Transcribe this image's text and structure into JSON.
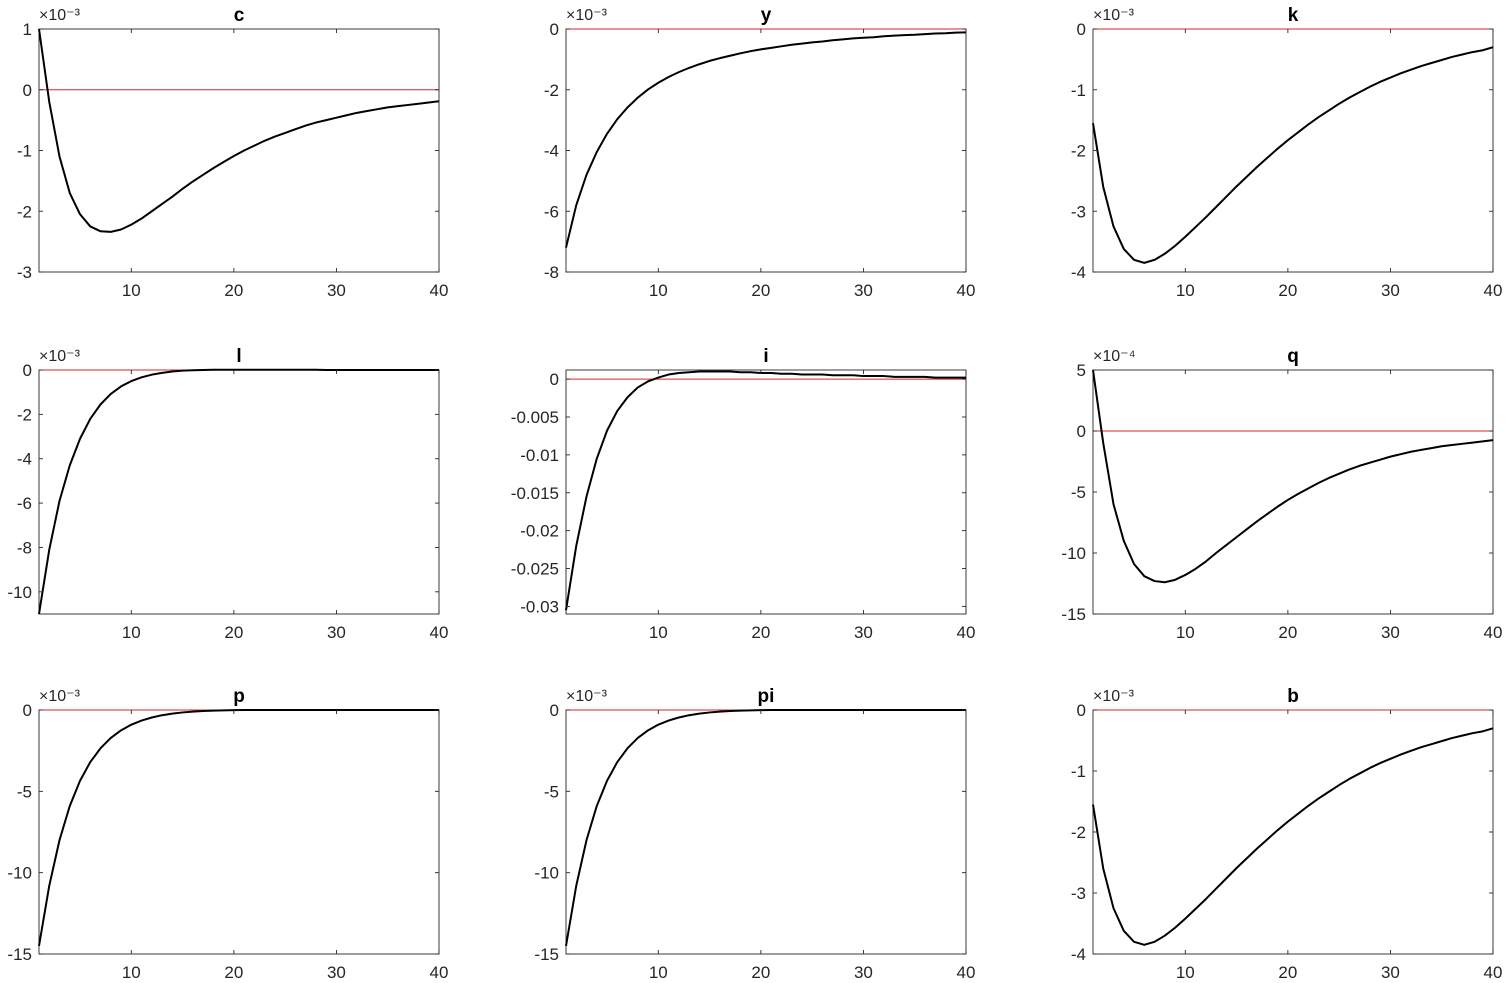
{
  "figure": {
    "colors": {
      "response": "#000000",
      "zero_line": "#d62728",
      "axes": "#262626",
      "background": "#ffffff"
    }
  },
  "chart_data": [
    {
      "type": "line",
      "title": "c",
      "exponent_label": "×10⁻³",
      "xlim": [
        1,
        40
      ],
      "ylim": [
        -3,
        1
      ],
      "xticks": [
        10,
        20,
        30,
        40
      ],
      "yticks": [
        -3,
        -2,
        -1,
        0,
        1
      ],
      "grid": false,
      "reference_line": 0,
      "x": [
        1,
        2,
        3,
        4,
        5,
        6,
        7,
        8,
        9,
        10,
        11,
        12,
        13,
        14,
        15,
        16,
        17,
        18,
        19,
        20,
        21,
        22,
        23,
        24,
        25,
        26,
        27,
        28,
        29,
        30,
        31,
        32,
        33,
        34,
        35,
        36,
        37,
        38,
        39,
        40
      ],
      "values": [
        1.0,
        -0.2,
        -1.1,
        -1.7,
        -2.05,
        -2.25,
        -2.33,
        -2.34,
        -2.3,
        -2.22,
        -2.12,
        -2.0,
        -1.88,
        -1.76,
        -1.63,
        -1.51,
        -1.4,
        -1.29,
        -1.19,
        -1.09,
        -1.0,
        -0.92,
        -0.84,
        -0.77,
        -0.71,
        -0.65,
        -0.59,
        -0.54,
        -0.5,
        -0.46,
        -0.42,
        -0.38,
        -0.35,
        -0.32,
        -0.29,
        -0.27,
        -0.25,
        -0.23,
        -0.21,
        -0.19
      ]
    },
    {
      "type": "line",
      "title": "y",
      "exponent_label": "×10⁻³",
      "xlim": [
        1,
        40
      ],
      "ylim": [
        -8,
        0
      ],
      "xticks": [
        10,
        20,
        30,
        40
      ],
      "yticks": [
        -8,
        -6,
        -4,
        -2,
        0
      ],
      "grid": false,
      "reference_line": 0,
      "x": [
        1,
        2,
        3,
        4,
        5,
        6,
        7,
        8,
        9,
        10,
        11,
        12,
        13,
        14,
        15,
        16,
        17,
        18,
        19,
        20,
        21,
        22,
        23,
        24,
        25,
        26,
        27,
        28,
        29,
        30,
        31,
        32,
        33,
        34,
        35,
        36,
        37,
        38,
        39,
        40
      ],
      "values": [
        -7.2,
        -5.8,
        -4.8,
        -4.05,
        -3.45,
        -2.97,
        -2.58,
        -2.26,
        -1.99,
        -1.77,
        -1.58,
        -1.42,
        -1.28,
        -1.16,
        -1.05,
        -0.96,
        -0.88,
        -0.8,
        -0.73,
        -0.67,
        -0.62,
        -0.57,
        -0.52,
        -0.48,
        -0.44,
        -0.41,
        -0.37,
        -0.34,
        -0.31,
        -0.29,
        -0.27,
        -0.24,
        -0.22,
        -0.2,
        -0.19,
        -0.17,
        -0.15,
        -0.14,
        -0.12,
        -0.11
      ]
    },
    {
      "type": "line",
      "title": "k",
      "exponent_label": "×10⁻³",
      "xlim": [
        1,
        40
      ],
      "ylim": [
        -4,
        0
      ],
      "xticks": [
        10,
        20,
        30,
        40
      ],
      "yticks": [
        -4,
        -3,
        -2,
        -1,
        0
      ],
      "grid": false,
      "reference_line": 0,
      "x": [
        1,
        2,
        3,
        4,
        5,
        6,
        7,
        8,
        9,
        10,
        11,
        12,
        13,
        14,
        15,
        16,
        17,
        18,
        19,
        20,
        21,
        22,
        23,
        24,
        25,
        26,
        27,
        28,
        29,
        30,
        31,
        32,
        33,
        34,
        35,
        36,
        37,
        38,
        39,
        40
      ],
      "values": [
        -1.55,
        -2.6,
        -3.25,
        -3.62,
        -3.8,
        -3.85,
        -3.8,
        -3.7,
        -3.57,
        -3.42,
        -3.26,
        -3.1,
        -2.93,
        -2.76,
        -2.59,
        -2.43,
        -2.27,
        -2.12,
        -1.97,
        -1.83,
        -1.7,
        -1.57,
        -1.45,
        -1.34,
        -1.23,
        -1.13,
        -1.04,
        -0.95,
        -0.87,
        -0.8,
        -0.73,
        -0.67,
        -0.61,
        -0.56,
        -0.51,
        -0.46,
        -0.42,
        -0.38,
        -0.35,
        -0.3
      ]
    },
    {
      "type": "line",
      "title": "l",
      "exponent_label": "×10⁻³",
      "xlim": [
        1,
        40
      ],
      "ylim": [
        -11,
        0
      ],
      "xticks": [
        10,
        20,
        30,
        40
      ],
      "yticks": [
        -10,
        -8,
        -6,
        -4,
        -2,
        0
      ],
      "grid": false,
      "reference_line": 0,
      "x": [
        1,
        2,
        3,
        4,
        5,
        6,
        7,
        8,
        9,
        10,
        11,
        12,
        13,
        14,
        15,
        16,
        17,
        18,
        19,
        20,
        21,
        22,
        23,
        24,
        25,
        26,
        27,
        28,
        29,
        30,
        31,
        32,
        33,
        34,
        35,
        36,
        37,
        38,
        39,
        40
      ],
      "values": [
        -11.0,
        -8.1,
        -5.9,
        -4.3,
        -3.1,
        -2.2,
        -1.55,
        -1.08,
        -0.74,
        -0.5,
        -0.33,
        -0.21,
        -0.13,
        -0.07,
        -0.03,
        -0.01,
        0.0,
        0.01,
        0.01,
        0.01,
        0.01,
        0.01,
        0.01,
        0.01,
        0.01,
        0.01,
        0.01,
        0.01,
        0.0,
        0.0,
        0.0,
        0.0,
        0.0,
        0.0,
        0.0,
        0.0,
        0.0,
        0.0,
        0.0,
        0.0
      ]
    },
    {
      "type": "line",
      "title": "i",
      "exponent_label": "",
      "xlim": [
        1,
        40
      ],
      "ylim": [
        -0.031,
        0.0012
      ],
      "xticks": [
        10,
        20,
        30,
        40
      ],
      "yticks": [
        -0.03,
        -0.025,
        -0.02,
        -0.015,
        -0.01,
        -0.005,
        0
      ],
      "ytick_labels": [
        "-0.03",
        "-0.025",
        "-0.02",
        "-0.015",
        "-0.01",
        "-0.005",
        "0"
      ],
      "grid": false,
      "reference_line": 0,
      "x": [
        1,
        2,
        3,
        4,
        5,
        6,
        7,
        8,
        9,
        10,
        11,
        12,
        13,
        14,
        15,
        16,
        17,
        18,
        19,
        20,
        21,
        22,
        23,
        24,
        25,
        26,
        27,
        28,
        29,
        30,
        31,
        32,
        33,
        34,
        35,
        36,
        37,
        38,
        39,
        40
      ],
      "values": [
        -0.0305,
        -0.022,
        -0.0155,
        -0.0105,
        -0.0068,
        -0.0042,
        -0.0024,
        -0.0011,
        -0.0003,
        0.0002,
        0.0006,
        0.0008,
        0.0009,
        0.001,
        0.001,
        0.001,
        0.001,
        0.0009,
        0.0009,
        0.0008,
        0.0008,
        0.0007,
        0.0007,
        0.0006,
        0.0006,
        0.0006,
        0.0005,
        0.0005,
        0.0005,
        0.0004,
        0.0004,
        0.0004,
        0.0003,
        0.0003,
        0.0003,
        0.0003,
        0.0002,
        0.0002,
        0.0002,
        0.0002
      ]
    },
    {
      "type": "line",
      "title": "q",
      "exponent_label": "×10⁻⁴",
      "xlim": [
        1,
        40
      ],
      "ylim": [
        -15,
        5
      ],
      "xticks": [
        10,
        20,
        30,
        40
      ],
      "yticks": [
        -15,
        -10,
        -5,
        0,
        5
      ],
      "grid": false,
      "reference_line": 0,
      "x": [
        1,
        2,
        3,
        4,
        5,
        6,
        7,
        8,
        9,
        10,
        11,
        12,
        13,
        14,
        15,
        16,
        17,
        18,
        19,
        20,
        21,
        22,
        23,
        24,
        25,
        26,
        27,
        28,
        29,
        30,
        31,
        32,
        33,
        34,
        35,
        36,
        37,
        38,
        39,
        40
      ],
      "values": [
        5.0,
        -1.0,
        -6.0,
        -9.0,
        -10.9,
        -11.9,
        -12.3,
        -12.4,
        -12.2,
        -11.8,
        -11.3,
        -10.7,
        -10.0,
        -9.35,
        -8.7,
        -8.05,
        -7.4,
        -6.8,
        -6.2,
        -5.65,
        -5.15,
        -4.7,
        -4.25,
        -3.85,
        -3.5,
        -3.15,
        -2.85,
        -2.6,
        -2.35,
        -2.1,
        -1.9,
        -1.7,
        -1.55,
        -1.4,
        -1.25,
        -1.15,
        -1.05,
        -0.95,
        -0.85,
        -0.75
      ]
    },
    {
      "type": "line",
      "title": "p",
      "exponent_label": "×10⁻³",
      "xlim": [
        1,
        40
      ],
      "ylim": [
        -15,
        0
      ],
      "xticks": [
        10,
        20,
        30,
        40
      ],
      "yticks": [
        -15,
        -10,
        -5,
        0
      ],
      "grid": false,
      "reference_line": 0,
      "x": [
        1,
        2,
        3,
        4,
        5,
        6,
        7,
        8,
        9,
        10,
        11,
        12,
        13,
        14,
        15,
        16,
        17,
        18,
        19,
        20,
        21,
        22,
        23,
        24,
        25,
        26,
        27,
        28,
        29,
        30,
        31,
        32,
        33,
        34,
        35,
        36,
        37,
        38,
        39,
        40
      ],
      "values": [
        -14.5,
        -10.8,
        -8.0,
        -5.9,
        -4.35,
        -3.2,
        -2.35,
        -1.72,
        -1.25,
        -0.9,
        -0.65,
        -0.46,
        -0.32,
        -0.22,
        -0.15,
        -0.1,
        -0.06,
        -0.04,
        -0.02,
        -0.01,
        0,
        0,
        0,
        0,
        0,
        0,
        0,
        0,
        0,
        0,
        0,
        0,
        0,
        0,
        0,
        0,
        0,
        0,
        0,
        0
      ]
    },
    {
      "type": "line",
      "title": "pi",
      "exponent_label": "×10⁻³",
      "xlim": [
        1,
        40
      ],
      "ylim": [
        -15,
        0
      ],
      "xticks": [
        10,
        20,
        30,
        40
      ],
      "yticks": [
        -15,
        -10,
        -5,
        0
      ],
      "grid": false,
      "reference_line": 0,
      "x": [
        1,
        2,
        3,
        4,
        5,
        6,
        7,
        8,
        9,
        10,
        11,
        12,
        13,
        14,
        15,
        16,
        17,
        18,
        19,
        20,
        21,
        22,
        23,
        24,
        25,
        26,
        27,
        28,
        29,
        30,
        31,
        32,
        33,
        34,
        35,
        36,
        37,
        38,
        39,
        40
      ],
      "values": [
        -14.5,
        -10.8,
        -8.0,
        -5.9,
        -4.35,
        -3.2,
        -2.35,
        -1.72,
        -1.25,
        -0.9,
        -0.65,
        -0.46,
        -0.32,
        -0.22,
        -0.15,
        -0.1,
        -0.06,
        -0.04,
        -0.02,
        -0.01,
        0,
        0,
        0,
        0,
        0,
        0,
        0,
        0,
        0,
        0,
        0,
        0,
        0,
        0,
        0,
        0,
        0,
        0,
        0,
        0
      ]
    },
    {
      "type": "line",
      "title": "b",
      "exponent_label": "×10⁻³",
      "xlim": [
        1,
        40
      ],
      "ylim": [
        -4,
        0
      ],
      "xticks": [
        10,
        20,
        30,
        40
      ],
      "yticks": [
        -4,
        -3,
        -2,
        -1,
        0
      ],
      "grid": false,
      "reference_line": 0,
      "x": [
        1,
        2,
        3,
        4,
        5,
        6,
        7,
        8,
        9,
        10,
        11,
        12,
        13,
        14,
        15,
        16,
        17,
        18,
        19,
        20,
        21,
        22,
        23,
        24,
        25,
        26,
        27,
        28,
        29,
        30,
        31,
        32,
        33,
        34,
        35,
        36,
        37,
        38,
        39,
        40
      ],
      "values": [
        -1.55,
        -2.6,
        -3.25,
        -3.62,
        -3.8,
        -3.85,
        -3.8,
        -3.7,
        -3.57,
        -3.42,
        -3.26,
        -3.1,
        -2.93,
        -2.76,
        -2.59,
        -2.43,
        -2.27,
        -2.12,
        -1.97,
        -1.83,
        -1.7,
        -1.57,
        -1.45,
        -1.34,
        -1.23,
        -1.13,
        -1.04,
        -0.95,
        -0.87,
        -0.8,
        -0.73,
        -0.67,
        -0.61,
        -0.56,
        -0.51,
        -0.46,
        -0.42,
        -0.38,
        -0.35,
        -0.3
      ]
    }
  ]
}
